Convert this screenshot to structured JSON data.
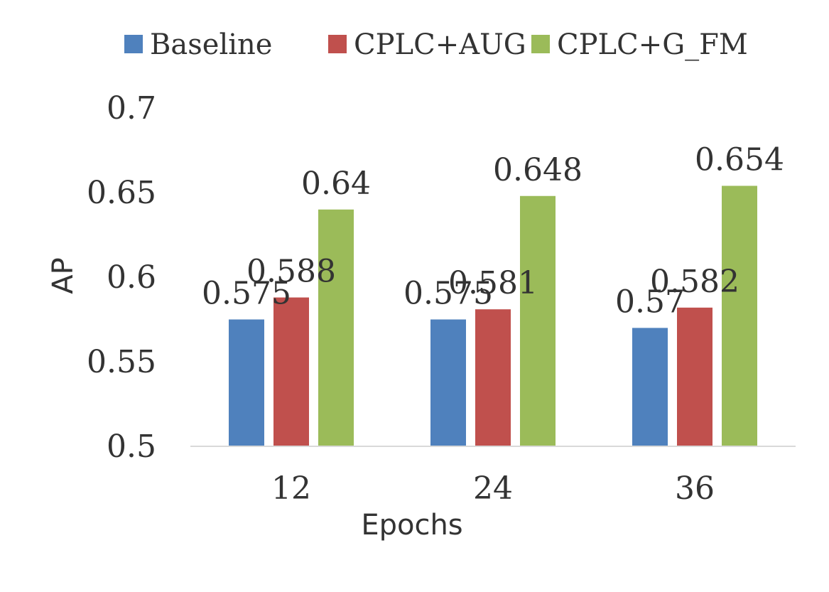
{
  "chart_data": {
    "type": "bar",
    "categories": [
      "12",
      "24",
      "36"
    ],
    "series": [
      {
        "name": "Baseline",
        "values": [
          0.575,
          0.575,
          0.57
        ],
        "labels": [
          "0.575",
          "0.575",
          "0.57"
        ],
        "color": "#4F81BD"
      },
      {
        "name": "CPLC+AUG",
        "values": [
          0.588,
          0.581,
          0.582
        ],
        "labels": [
          "0.588",
          "0.581",
          "0.582"
        ],
        "color": "#C0504D"
      },
      {
        "name": "CPLC+G_FM",
        "values": [
          0.64,
          0.648,
          0.654
        ],
        "labels": [
          "0.64",
          "0.648",
          "0.654"
        ],
        "color": "#9BBB59"
      }
    ],
    "xlabel": "Epochs",
    "ylabel": "AP",
    "ylim": [
      0.5,
      0.7
    ],
    "yticks": [
      0.5,
      0.55,
      0.6,
      0.65,
      0.7
    ],
    "ytick_labels": [
      "0.5",
      "0.55",
      "0.6",
      "0.65",
      "0.7"
    ],
    "legend_position": "top",
    "grid": false,
    "axis_color": "#D9D9D9"
  }
}
